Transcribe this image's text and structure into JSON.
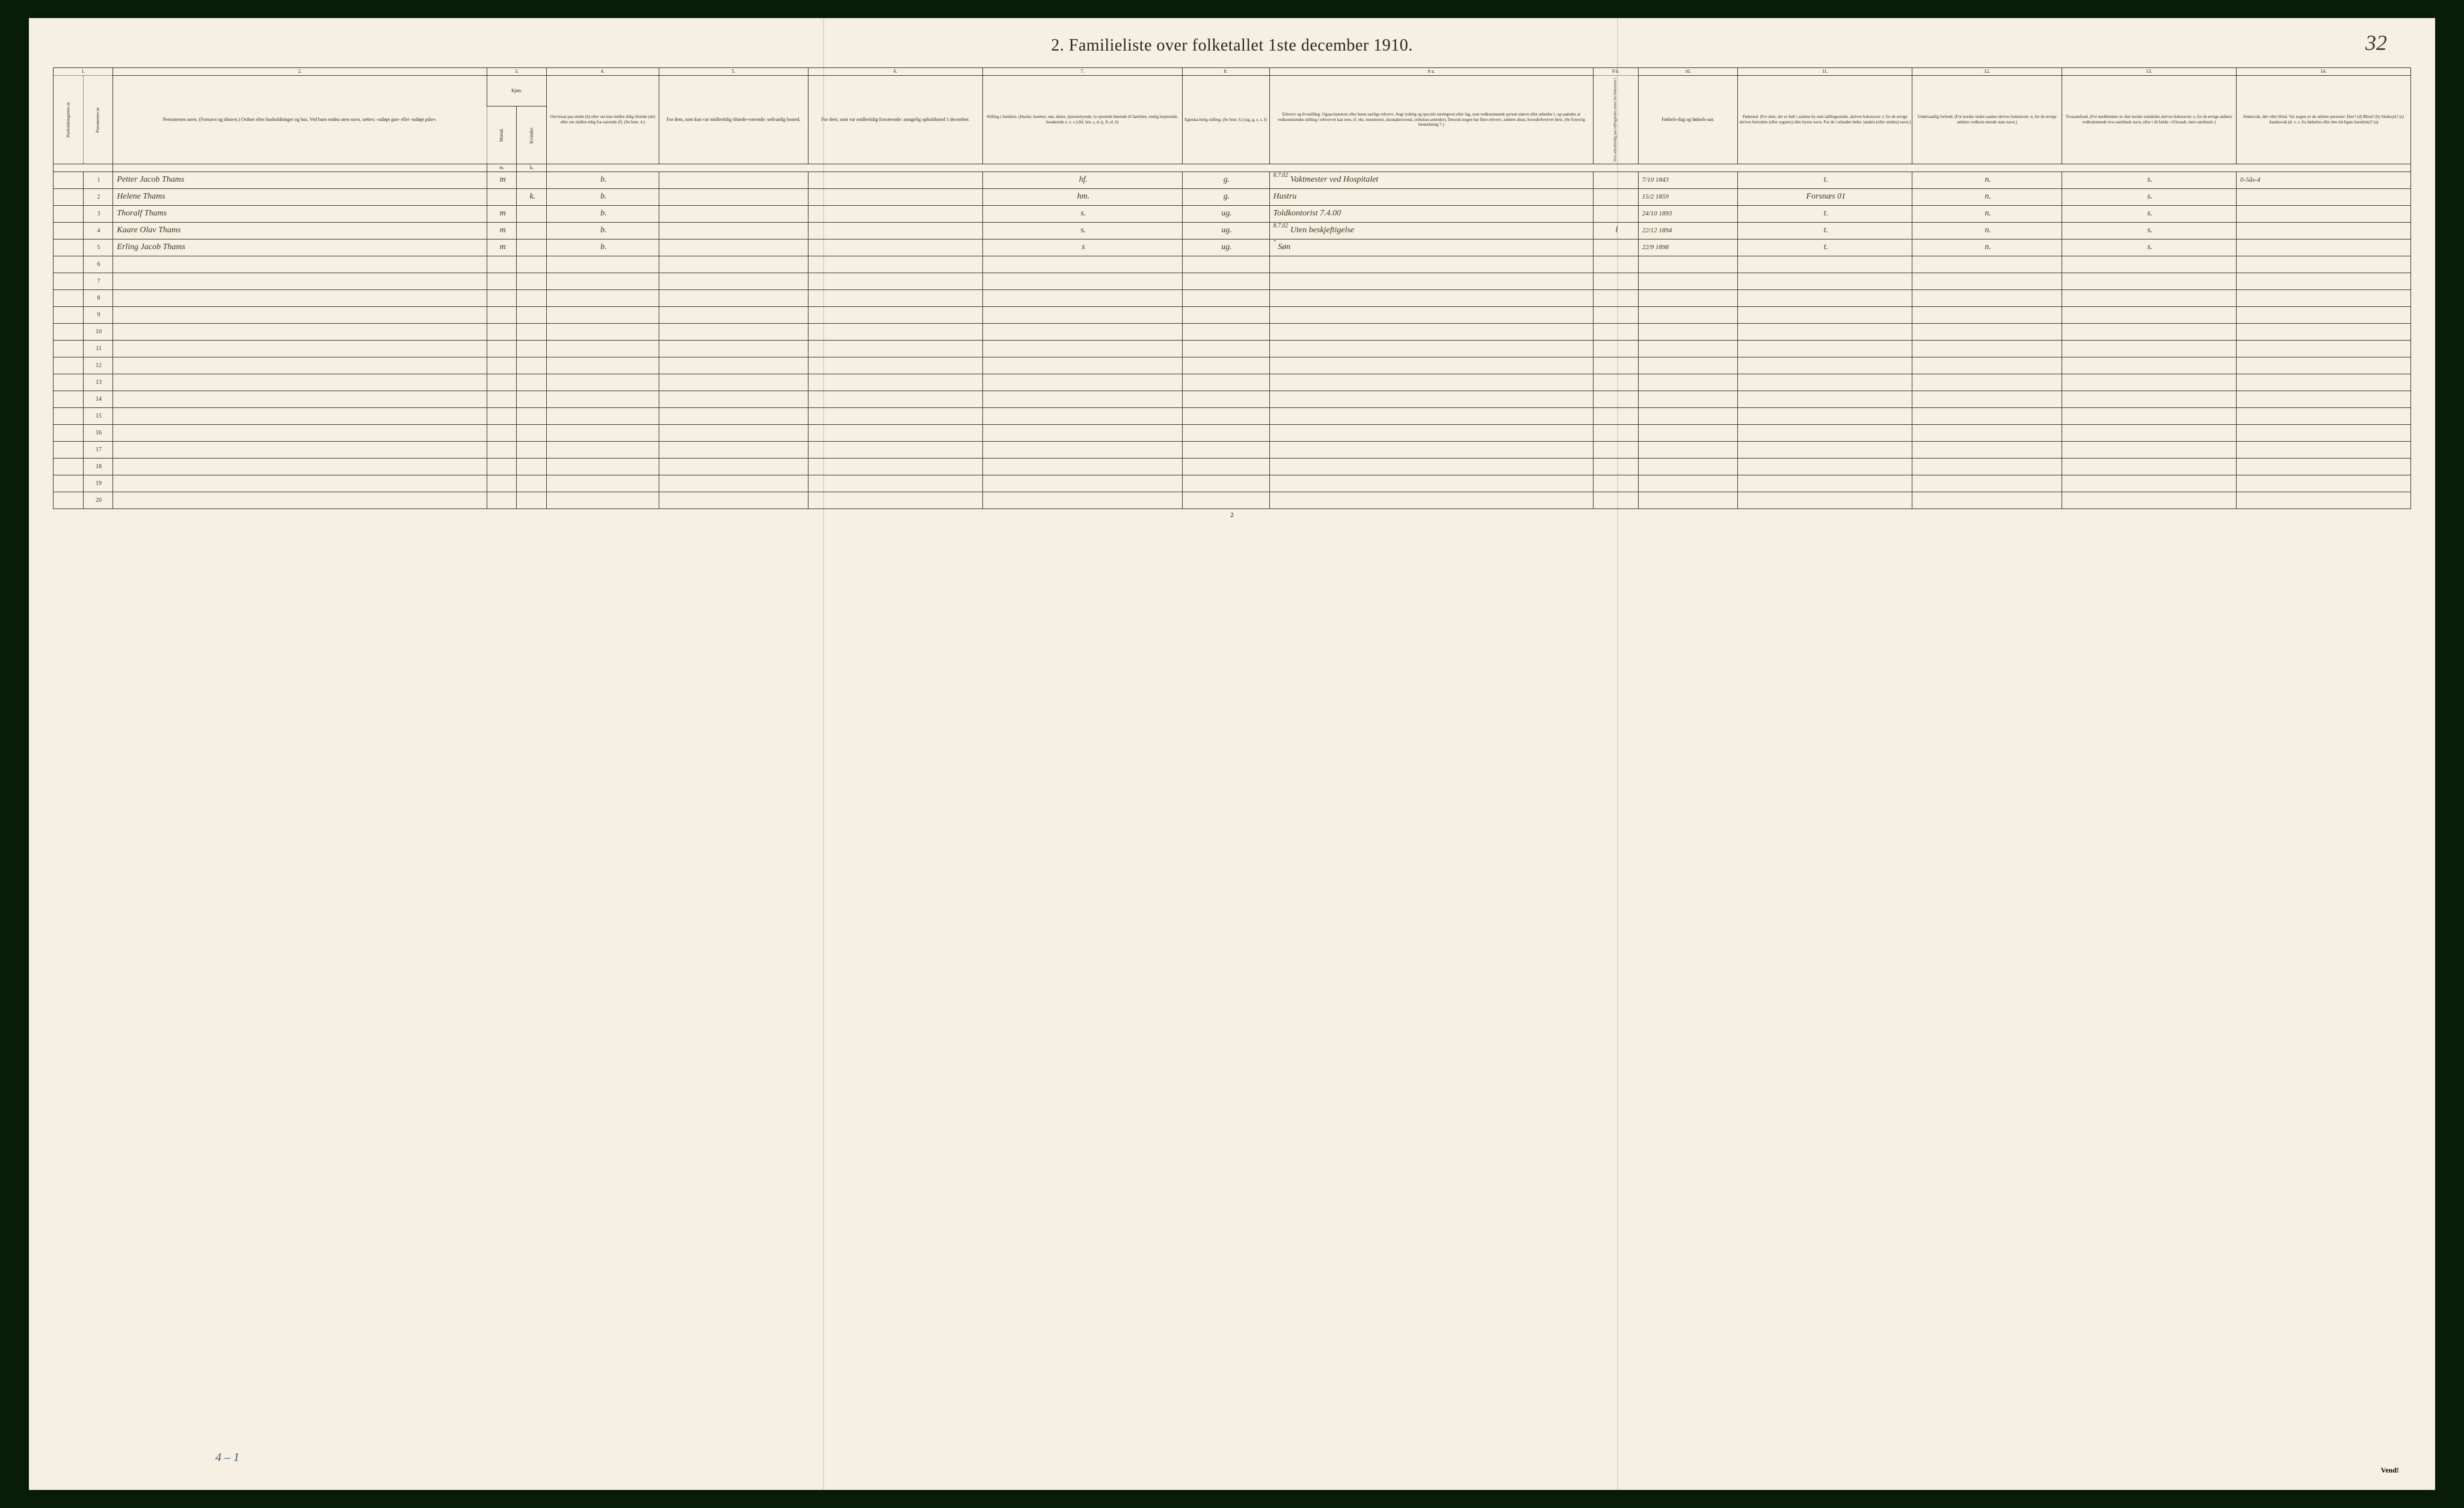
{
  "document": {
    "title": "2.  Familieliste over folketallet 1ste december 1910.",
    "handwritten_page_number": "32",
    "footer_page_number": "2",
    "footer_vend": "Vend!",
    "bottom_annotation": "4 – 1"
  },
  "columns": {
    "numbers": [
      "1.",
      "2.",
      "3.",
      "4.",
      "5.",
      "6.",
      "7.",
      "8.",
      "9 a.",
      "9 b.",
      "10.",
      "11.",
      "12.",
      "13.",
      "14."
    ],
    "headers": {
      "c1": "Husholdningernes nr.",
      "c1b": "Personernes nr.",
      "c2": "Personernes navn.\n(Fornavn og tilnavn.)\nOrdnet efter husholdninger og hus.\nVed barn endnu uten navn, sættes: «udøpt gut» eller «udøpt pike».",
      "c3": "Kjøn.",
      "c3_sub_m": "Mænd.",
      "c3_sub_k": "Kvinder.",
      "c3_mk_m": "m.",
      "c3_mk_k": "k.",
      "c4": "Om bosat paa stedet (b) eller om kun midler-tidig tilstede (mt) eller om midler-tidig fra-værende (f). (Se bem. 4.)",
      "c5": "For dem, som kun var midlertidig tilstede-værende:\nsedvanlig bosted.",
      "c6": "For dem, som var midlertidig fraværende:\nantagelig opholdssted 1 december.",
      "c7": "Stilling i familien.\n(Husfar, husmor, søn, datter, tjenestetyende, lo-sjerende hørende til familien, enslig losjerende, besøkende o. s. v.)\n(hf, hm, s, d, tj, fl, el, b)",
      "c8": "Egteska-belig stilling.\n(Se bem. 6.)\n(ug, g, e, s, f)",
      "c9a": "Erhverv og livsstilling.\nOgsaa husmors eller barns særlige erhverv.\nAngi tydelig og specielt næringsvei eller fag, som vedkommende person utøver eller arbeider i, og saaledes at vedkommendes stilling i erhvervet kan sees. (f. eks. murmester, skomakersvend, cellulose-arbeider). Dersom nogen har flere erhverv, anføres disse, hovederhvervet først.\n(Se forøvrig bemerkning 7.)",
      "c9b": "Hvis arbeidsledig paa tællingstiden sættes her bokstaven l.",
      "c10": "Fødsels-dag og fødsels-aar.",
      "c11": "Fødested.\n(For dem, der er født i samme by som tællingsstedet, skrives bokstaven: t; for de øvrige skrives herredets (eller sognets) eller byens navn. For de i utlandet fødte: landets (eller stedets) navn.)",
      "c12": "Undersaatlig forhold.\n(For norske under-saatter skrives bokstaven: n; for de øvrige anføres vedkom-mende stats navn.)",
      "c13": "Trossamfund.\n(For medlemmer av den norske statskirke skrives bokstaven: s; for de øvrige anføres vedkommende tros-samfunds navn, eller i til-fælde: «Uttraadt, intet samfund».)",
      "c14": "Sindssvak, døv eller blind.\nVar nogen av de anførte personer:\nDøv? (d)\nBlind? (b)\nSindssyk? (s)\nAandssvak (d. v. s. fra fødselen eller den tid-ligste barndom)? (a)"
    }
  },
  "rows": [
    {
      "num": "1",
      "name": "Petter Jacob Thams",
      "sex_m": "m",
      "sex_k": "",
      "bosat": "b.",
      "c5": "",
      "c6": "",
      "c7": "hf.",
      "c8": "g.",
      "c9a": "Vaktmester ved Hospitalet",
      "c9a_note": "8.7.02",
      "c9b": "",
      "c10": "7/10 1843",
      "c11": "t.",
      "c12": "n.",
      "c13": "s.",
      "c14": "0-5ås-4"
    },
    {
      "num": "2",
      "name": "Helene Thams",
      "sex_m": "",
      "sex_k": "k.",
      "bosat": "b.",
      "c5": "",
      "c6": "",
      "c7": "hm.",
      "c8": "g.",
      "c9a": "Hustru",
      "c9a_note": "",
      "c9b": "",
      "c10": "15/2 1859",
      "c11": "Forsnæs 01",
      "c12": "n.",
      "c13": "s.",
      "c14": ""
    },
    {
      "num": "3",
      "name": "Thoralf Thams",
      "sex_m": "m",
      "sex_k": "",
      "bosat": "b.",
      "c5": "",
      "c6": "",
      "c7": "s.",
      "c8": "ug.",
      "c9a": "Toldkontorist 7.4.00",
      "c9a_note": "",
      "c9b": "",
      "c10": "24/10 1893",
      "c11": "t.",
      "c12": "n.",
      "c13": "s.",
      "c14": ""
    },
    {
      "num": "4",
      "name": "Kaare Olav Thams",
      "sex_m": "m",
      "sex_k": "",
      "bosat": "b.",
      "c5": "",
      "c6": "",
      "c7": "s.",
      "c8": "ug.",
      "c9a": "Uten beskjeftigelse",
      "c9a_note": "8.7.02",
      "c9b": "l",
      "c10": "22/12 1894",
      "c11": "t.",
      "c12": "n.",
      "c13": "s.",
      "c14": ""
    },
    {
      "num": "5",
      "name": "Erling Jacob Thams",
      "sex_m": "m",
      "sex_k": "",
      "bosat": "b.",
      "c5": "",
      "c6": "",
      "c7": "s",
      "c8": "ug.",
      "c9a": "Søn",
      "c9a_note": "\"",
      "c9b": "",
      "c10": "22/9 1898",
      "c11": "t.",
      "c12": "n.",
      "c13": "s.",
      "c14": ""
    }
  ],
  "empty_row_numbers": [
    "6",
    "7",
    "8",
    "9",
    "10",
    "11",
    "12",
    "13",
    "14",
    "15",
    "16",
    "17",
    "18",
    "19",
    "20"
  ],
  "styling": {
    "page_bg": "#f5f0e1",
    "outer_bg": "#0a1f0a",
    "line_color": "#3a3a2a",
    "ink_color": "#3a3520",
    "annotation_color": "#4a5a7a",
    "title_fontsize": 28,
    "header_fontsize": 8,
    "handwriting_fontsize": 14
  }
}
